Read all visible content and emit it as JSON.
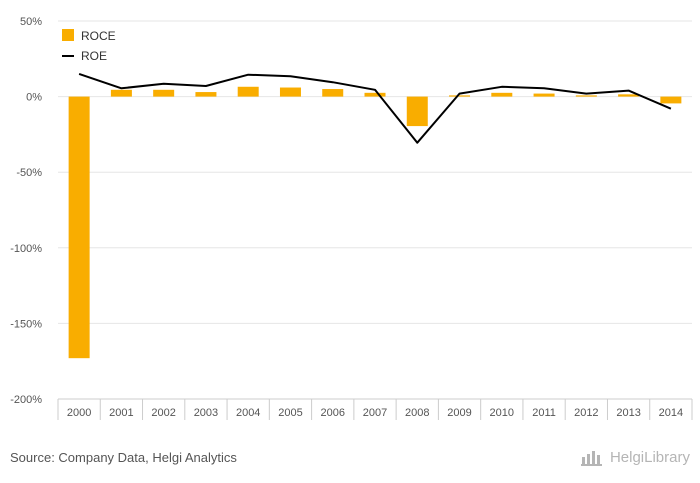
{
  "chart_data": {
    "type": "bar",
    "categories": [
      "2000",
      "2001",
      "2002",
      "2003",
      "2004",
      "2005",
      "2006",
      "2007",
      "2008",
      "2009",
      "2010",
      "2011",
      "2012",
      "2013",
      "2014"
    ],
    "series": [
      {
        "name": "ROCE",
        "type": "bar",
        "values": [
          -173,
          4.5,
          4.5,
          3,
          6.5,
          6,
          5,
          2.5,
          -19.5,
          0.8,
          2.5,
          2,
          0.8,
          1.5,
          -4.5
        ]
      },
      {
        "name": "ROE",
        "type": "line",
        "values": [
          15,
          5.5,
          8.5,
          7,
          14.5,
          13.5,
          9.5,
          4.5,
          -30.5,
          2,
          6.5,
          5.5,
          2,
          4,
          -8
        ]
      }
    ],
    "ylim": [
      -200,
      50
    ],
    "yticks": [
      50,
      0,
      -50,
      -100,
      -150,
      -200
    ],
    "ytick_labels": [
      "50%",
      "0%",
      "-50%",
      "-100%",
      "-150%",
      "-200%"
    ],
    "grid": true,
    "legend_position": "top-left",
    "colors": {
      "bar": "#f9ad00",
      "line": "#000000",
      "grid": "#e6e6e6",
      "axis": "#cccccc"
    }
  },
  "footer": {
    "source": "Source: Company Data, Helgi Analytics",
    "brand": "HelgiLibrary"
  }
}
